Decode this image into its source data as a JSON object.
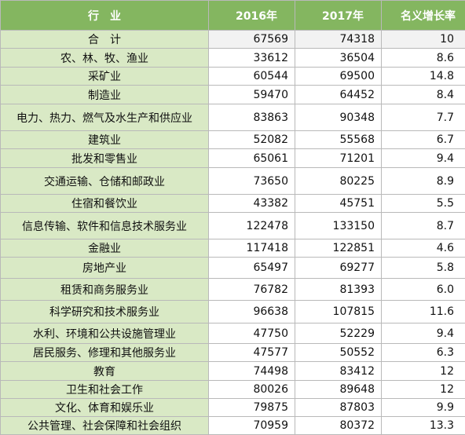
{
  "header": {
    "industry": "行业",
    "y2016": "2016年",
    "y2017": "2017年",
    "growth": "名义增长率"
  },
  "rows": [
    {
      "industry": "合计",
      "y2016": "67569",
      "y2017": "74318",
      "growth": "10"
    },
    {
      "industry": "农、林、牧、渔业",
      "y2016": "33612",
      "y2017": "36504",
      "growth": "8.6"
    },
    {
      "industry": "采矿业",
      "y2016": "60544",
      "y2017": "69500",
      "growth": "14.8"
    },
    {
      "industry": "制造业",
      "y2016": "59470",
      "y2017": "64452",
      "growth": "8.4"
    },
    {
      "industry": "电力、热力、燃气及水生产和供应业",
      "y2016": "83863",
      "y2017": "90348",
      "growth": "7.7"
    },
    {
      "industry": "建筑业",
      "y2016": "52082",
      "y2017": "55568",
      "growth": "6.7"
    },
    {
      "industry": "批发和零售业",
      "y2016": "65061",
      "y2017": "71201",
      "growth": "9.4"
    },
    {
      "industry": "交通运输、仓储和邮政业",
      "y2016": "73650",
      "y2017": "80225",
      "growth": "8.9"
    },
    {
      "industry": "住宿和餐饮业",
      "y2016": "43382",
      "y2017": "45751",
      "growth": "5.5"
    },
    {
      "industry": "信息传输、软件和信息技术服务业",
      "y2016": "122478",
      "y2017": "133150",
      "growth": "8.7"
    },
    {
      "industry": "金融业",
      "y2016": "117418",
      "y2017": "122851",
      "growth": "4.6"
    },
    {
      "industry": "房地产业",
      "y2016": "65497",
      "y2017": "69277",
      "growth": "5.8"
    },
    {
      "industry": "租赁和商务服务业",
      "y2016": "76782",
      "y2017": "81393",
      "growth": "6.0"
    },
    {
      "industry": "科学研究和技术服务业",
      "y2016": "96638",
      "y2017": "107815",
      "growth": "11.6"
    },
    {
      "industry": "水利、环境和公共设施管理业",
      "y2016": "47750",
      "y2017": "52229",
      "growth": "9.4"
    },
    {
      "industry": "居民服务、修理和其他服务业",
      "y2016": "47577",
      "y2017": "50552",
      "growth": "6.3"
    },
    {
      "industry": "教育",
      "y2016": "74498",
      "y2017": "83412",
      "growth": "12"
    },
    {
      "industry": "卫生和社会工作",
      "y2016": "80026",
      "y2017": "89648",
      "growth": "12"
    },
    {
      "industry": "文化、体育和娱乐业",
      "y2016": "79875",
      "y2017": "87803",
      "growth": "9.9"
    },
    {
      "industry": "公共管理、社会保障和社会组织",
      "y2016": "70959",
      "y2017": "80372",
      "growth": "13.3"
    }
  ],
  "colors": {
    "header_bg": "#84b660",
    "header_text": "#ffffff",
    "industry_bg": "#d9e9c5",
    "total_bg": "#f2f2f2",
    "border": "#b9b9b9"
  }
}
